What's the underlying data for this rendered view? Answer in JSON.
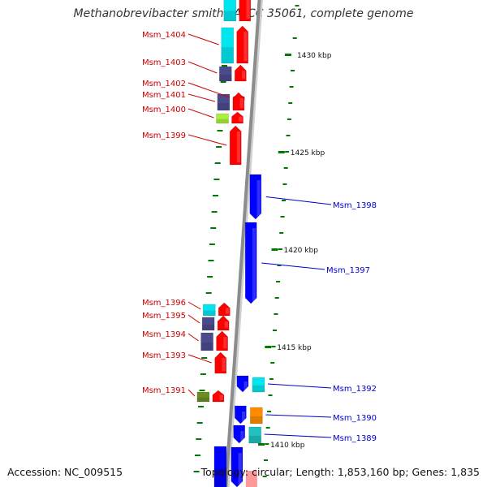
{
  "title": "Methanobrevibacter smithii ATCC 35061, complete genome",
  "accession_label": "Accession: NC_009515",
  "topology_label": "Topology: circular; Length: 1,853,160 bp; Genes: 1,835",
  "colors": {
    "backbone": "#8c8c8c",
    "forward_gene": "#ff0000",
    "reverse_gene": "#0000ff",
    "forward_label": "#cc0000",
    "reverse_label": "#0000cc",
    "cog_cyan": "#00e5ee",
    "cog_navy": "#4b4b8c",
    "cog_lime": "#a8f03c",
    "cog_olive": "#6b8e23",
    "cog_orange": "#ff8c00",
    "cog_teal": "#20c0c0",
    "tick": "#007a00"
  },
  "ticks": [
    {
      "label": "1430 kbp"
    },
    {
      "label": "1425 kbp"
    },
    {
      "label": "1420 kbp"
    },
    {
      "label": "1415 kbp"
    },
    {
      "label": "1410 kbp"
    }
  ],
  "forward_genes": [
    {
      "label": "Msm_1404",
      "cog": "cog_cyan"
    },
    {
      "label": "Msm_1403",
      "cog": "cog_navy"
    },
    {
      "label": "Msm_1402",
      "cog": null
    },
    {
      "label": "Msm_1401",
      "cog": "cog_navy"
    },
    {
      "label": "Msm_1400",
      "cog": "cog_lime"
    },
    {
      "label": "Msm_1399",
      "cog": null
    },
    {
      "label": "Msm_1396",
      "cog": "cog_cyan"
    },
    {
      "label": "Msm_1395",
      "cog": "cog_navy"
    },
    {
      "label": "Msm_1394",
      "cog": "cog_navy"
    },
    {
      "label": "Msm_1393",
      "cog": null
    },
    {
      "label": "Msm_1391",
      "cog": "cog_olive"
    }
  ],
  "reverse_genes": [
    {
      "label": "Msm_1398",
      "cog": null
    },
    {
      "label": "Msm_1397",
      "cog": null
    },
    {
      "label": "Msm_1392",
      "cog": "cog_cyan"
    },
    {
      "label": "Msm_1390",
      "cog": "cog_orange"
    },
    {
      "label": "Msm_1389",
      "cog": "cog_teal"
    }
  ]
}
